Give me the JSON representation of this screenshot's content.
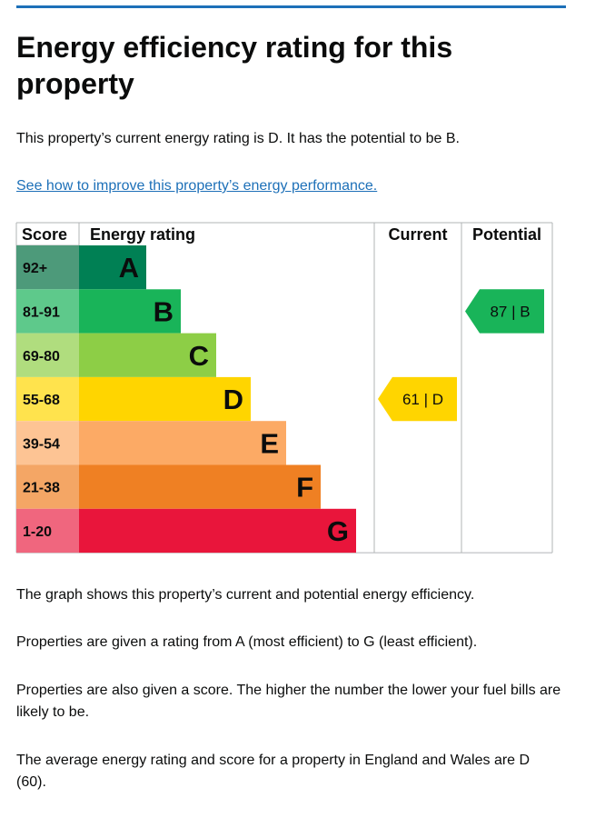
{
  "page": {
    "title": "Energy efficiency rating for this property",
    "summary": "This property’s current energy rating is D. It has the potential to be B.",
    "improve_link": "See how to improve this property’s energy performance.",
    "notes": [
      "The graph shows this property’s current and potential energy efficiency.",
      "Properties are given a rating from A (most efficient) to G (least efficient).",
      "Properties are also given a score. The higher the number the lower your fuel bills are likely to be.",
      "The average energy rating and score for a property in England and Wales are D (60)."
    ]
  },
  "colors": {
    "link": "#1d70b8",
    "grid": "#b1b4b6",
    "bands": [
      "#008054",
      "#19b459",
      "#8dce46",
      "#ffd500",
      "#fcaa65",
      "#ef8023",
      "#e9153b"
    ],
    "score_cells": [
      "#4d9a7a",
      "#5ec98b",
      "#b0dd7e",
      "#ffe34d",
      "#fdc494",
      "#f4a665",
      "#f0667e"
    ]
  },
  "chart_data": {
    "type": "table",
    "headers": {
      "score": "Score",
      "rating": "Energy rating",
      "current": "Current",
      "potential": "Potential"
    },
    "bands": [
      {
        "letter": "A",
        "range": "92+"
      },
      {
        "letter": "B",
        "range": "81-91"
      },
      {
        "letter": "C",
        "range": "69-80"
      },
      {
        "letter": "D",
        "range": "55-68"
      },
      {
        "letter": "E",
        "range": "39-54"
      },
      {
        "letter": "F",
        "range": "21-38"
      },
      {
        "letter": "G",
        "range": "1-20"
      }
    ],
    "current": {
      "score": 61,
      "letter": "D",
      "label": "61 | D"
    },
    "potential": {
      "score": 87,
      "letter": "B",
      "label": "87 | B"
    }
  }
}
